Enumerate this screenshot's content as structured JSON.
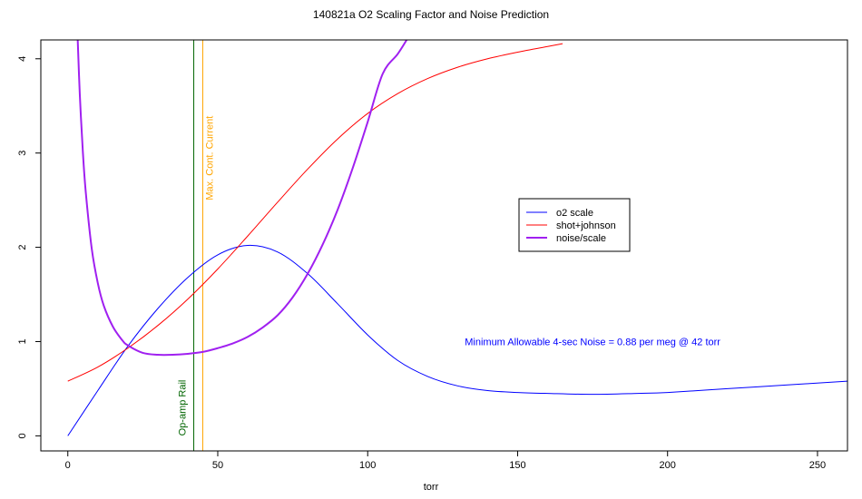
{
  "chart_data": {
    "type": "line",
    "title": "140821a  O2 Scaling Factor and Noise Prediction",
    "xlabel": "torr",
    "ylabel": "",
    "xlim": [
      -9,
      260
    ],
    "ylim": [
      -0.16,
      4.2
    ],
    "x_ticks": [
      0,
      50,
      100,
      150,
      200,
      250
    ],
    "y_ticks": [
      0,
      1,
      2,
      3,
      4
    ],
    "grid": false,
    "legend_position": "center-right",
    "series": [
      {
        "name": "o2 scale",
        "color": "#0000ff",
        "line_width": 1,
        "x": [
          0,
          10,
          20,
          30,
          40,
          50,
          60,
          70,
          80,
          90,
          100,
          110,
          120,
          130,
          140,
          150,
          160,
          175,
          190,
          200,
          220,
          240,
          260
        ],
        "y": [
          0.0,
          0.48,
          0.95,
          1.35,
          1.68,
          1.92,
          2.02,
          1.95,
          1.72,
          1.4,
          1.07,
          0.8,
          0.63,
          0.53,
          0.48,
          0.46,
          0.45,
          0.44,
          0.45,
          0.46,
          0.5,
          0.54,
          0.58
        ]
      },
      {
        "name": "shot+johnson",
        "color": "#ff0000",
        "line_width": 1,
        "x": [
          0,
          10,
          20,
          30,
          40,
          50,
          60,
          70,
          80,
          90,
          100,
          110,
          120,
          130,
          140,
          150,
          160,
          165
        ],
        "y": [
          0.58,
          0.73,
          0.93,
          1.17,
          1.45,
          1.77,
          2.12,
          2.48,
          2.83,
          3.15,
          3.42,
          3.63,
          3.79,
          3.91,
          4.0,
          4.07,
          4.13,
          4.16
        ]
      },
      {
        "name": "noise/scale",
        "color": "#a020f0",
        "line_width": 2,
        "x": [
          3.3,
          4,
          5,
          6,
          8,
          10,
          12,
          15,
          18,
          20,
          25,
          30,
          35,
          40,
          45,
          50,
          55,
          60,
          65,
          70,
          75,
          80,
          85,
          90,
          95,
          100,
          105,
          110,
          113
        ],
        "y": [
          4.2,
          3.62,
          3.02,
          2.58,
          1.98,
          1.62,
          1.38,
          1.16,
          1.02,
          0.96,
          0.88,
          0.86,
          0.86,
          0.87,
          0.89,
          0.93,
          0.98,
          1.05,
          1.15,
          1.28,
          1.47,
          1.72,
          2.03,
          2.4,
          2.84,
          3.33,
          3.84,
          4.05,
          4.2
        ]
      }
    ],
    "vertical_lines": [
      {
        "x": 42,
        "color": "#006400",
        "label": "Op-amp Rail"
      },
      {
        "x": 45,
        "color": "#ffa500",
        "label": "Max. Cont. Current"
      }
    ],
    "annotations": [
      {
        "text": "Minimum Allowable 4-sec Noise =  0.88  per meg @  42  torr",
        "x": 175,
        "y": 1.0,
        "color": "#0000ff"
      }
    ]
  }
}
